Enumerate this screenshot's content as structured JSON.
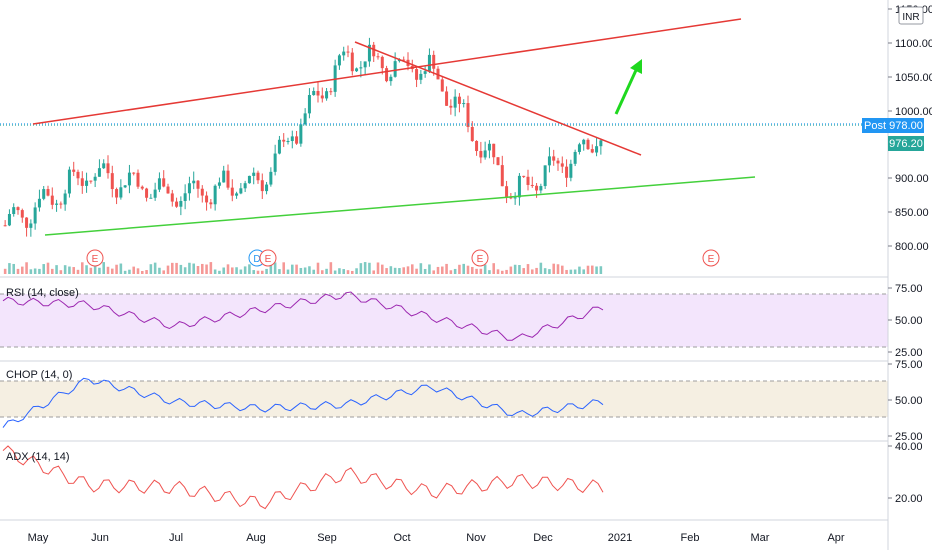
{
  "currency_label": "INR",
  "colors": {
    "up": "#26a69a",
    "down": "#ef5350",
    "trend_red": "#e53935",
    "trend_green": "#43d03b",
    "arrow": "#1fd81f",
    "rsi_line": "#9c27b0",
    "rsi_bg": "#f3e5fc",
    "chop_line": "#2962ff",
    "chop_bg": "#f5efe2",
    "adx_line": "#ef5350",
    "tag_post": "#2196f3",
    "tag_price": "#26a69a"
  },
  "price_panel": {
    "ylim": [
      765,
      1150
    ],
    "y_ticks": [
      "1150.00",
      "1100.00",
      "1050.00",
      "1000.00",
      "900.00",
      "850.00",
      "800.00"
    ],
    "post_label": "Post",
    "post_value": "978.00",
    "last_value": "976.20",
    "earnings_label": "E",
    "dividend_label": "D"
  },
  "rsi_panel": {
    "label": "RSI (14, close)",
    "ylim": [
      25,
      75
    ],
    "y_ticks": [
      "75.00",
      "50.00",
      "25.00"
    ]
  },
  "chop_panel": {
    "label": "CHOP (14, 0)",
    "ylim": [
      25,
      75
    ],
    "y_ticks": [
      "75.00",
      "50.00",
      "25.00"
    ]
  },
  "adx_panel": {
    "label": "ADX (14, 14)",
    "ylim": [
      10,
      40
    ],
    "y_ticks": [
      "40.00",
      "20.00"
    ]
  },
  "time_axis": {
    "labels": [
      "May",
      "Jun",
      "Jul",
      "Aug",
      "Sep",
      "Oct",
      "Nov",
      "Dec",
      "2021",
      "Feb",
      "Mar",
      "Apr"
    ]
  },
  "chart_data": {
    "type": "line",
    "title": "",
    "x": [
      "May",
      "Jun",
      "Jul",
      "Aug",
      "Sep",
      "Oct",
      "Nov",
      "Dec"
    ],
    "series": [
      {
        "name": "",
        "values": [
          825,
          905,
          870,
          890,
          1080,
          1060,
          870,
          960
        ]
      }
    ],
    "last_price": 976.2,
    "post_market_price": 978.0,
    "indicators": [
      {
        "name": "RSI (14, close)",
        "values": [
          65,
          62,
          45,
          58,
          70,
          52,
          35,
          60
        ],
        "bands": [
          70,
          30
        ]
      },
      {
        "name": "CHOP (14, 0)",
        "values": [
          30,
          68,
          50,
          45,
          48,
          62,
          40,
          50
        ],
        "bands": [
          61.8,
          38.2
        ]
      },
      {
        "name": "ADX (14, 14)",
        "values": [
          38,
          23,
          22,
          15,
          28,
          20,
          25,
          22
        ]
      }
    ],
    "annotations": [
      "Rising red trendline",
      "Falling red trendline",
      "Rising green support line",
      "Green up arrow"
    ],
    "ylim": [
      765,
      1150
    ],
    "grid": false
  }
}
